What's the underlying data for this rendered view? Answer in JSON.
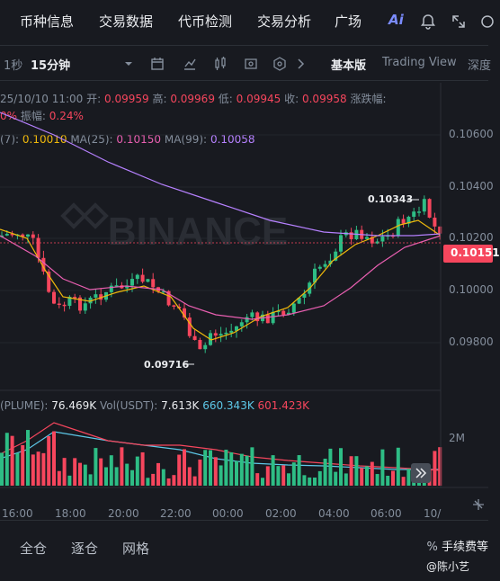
{
  "nav": {
    "tabs": [
      "币种信息",
      "交易数据",
      "代币检测",
      "交易分析",
      "广场"
    ],
    "ai_label": "Ai",
    "icons": [
      "bell-icon",
      "expand-icon",
      "settings-icon"
    ]
  },
  "toolbar": {
    "interval_1s": "1秒",
    "interval_active": "15分钟",
    "view_basic": "基本版",
    "view_tv": "Trading View",
    "view_depth": "深度"
  },
  "ohlc": {
    "date": "25/10/10 11:00",
    "open_label": "开:",
    "open": "0.09959",
    "high_label": "高:",
    "high": "0.09969",
    "low_label": "低:",
    "low": "0.09945",
    "close_label": "收:",
    "close": "0.09958",
    "change_label": "涨跌幅:",
    "change_tail": "0%",
    "amp_label": "振幅:",
    "amp": "0.24%"
  },
  "ma": {
    "ma7_prefix": "(7):",
    "ma7": "0.10010",
    "ma25_label": "MA(25):",
    "ma25": "0.10150",
    "ma99_label": "MA(99):",
    "ma99": "0.10058"
  },
  "chart": {
    "watermark": "BINANCE",
    "last_price": "0.10151",
    "high_marker": "0.10343",
    "low_marker": "0.09716",
    "y_ticks": [
      "0.10600",
      "0.10400",
      "0.10200",
      "0.10000",
      "0.09800"
    ],
    "x_ticks": [
      "16:00",
      "18:00",
      "20:00",
      "22:00",
      "00:00",
      "02:00",
      "04:00",
      "06:00",
      "10/"
    ],
    "vol_tick": "2M",
    "colors": {
      "up": "#2ebd85",
      "down": "#f6465d",
      "ma7": "#f0b90b",
      "ma25": "#e95fb1",
      "ma99": "#b681ff"
    }
  },
  "volume": {
    "label1": "(PLUME):",
    "val1": "76.469K",
    "label2": "Vol(USDT):",
    "val2": "7.613K",
    "val3": "660.343K",
    "val4": "601.423K"
  },
  "bottom": {
    "tabs": [
      "全仓",
      "逐仓",
      "网格"
    ],
    "fee_label": "手续费等",
    "user": "@陈小艺"
  }
}
